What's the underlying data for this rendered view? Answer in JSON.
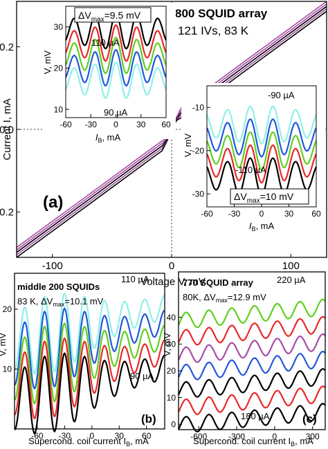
{
  "colors": {
    "black": "#000000",
    "red": "#e8282b",
    "green": "#5fcf1e",
    "blue": "#2357d9",
    "cyan": "#8ff0e8",
    "purple": "#a64ca6"
  },
  "chart_data": [
    {
      "id": "a",
      "type": "line",
      "panel_label": "(a)",
      "title": "800 SQUID array",
      "subtitle": "121 IVs, 83 K",
      "xlabel": "Voltage V, mV",
      "ylabel": "Current I, mA",
      "xlim": [
        -130,
        130
      ],
      "ylim": [
        -0.31,
        0.31
      ],
      "xticks": [
        -100,
        0,
        100
      ],
      "yticks": [
        -0.2,
        0.0,
        0.2
      ],
      "xtick_labels": [
        "-100",
        "0",
        "100"
      ],
      "ytick_labels": [
        "-0.2",
        "0.0",
        "0.2"
      ],
      "series": [
        {
          "x": [
            -130,
            -60,
            -20,
            -8,
            -4,
            0,
            4,
            8,
            20,
            60,
            130
          ],
          "y": [
            -0.298,
            -0.15,
            -0.065,
            -0.04,
            -0.025,
            0.0,
            0.025,
            0.04,
            0.065,
            0.15,
            0.298
          ]
        }
      ]
    },
    {
      "id": "a-inset-left",
      "type": "line",
      "annotation": "ΔVmax=9.5 mV",
      "annotation_main": "ΔV",
      "annotation_sub": "max",
      "annotation_rest": "=9.5 mV",
      "label_top": "110 µA",
      "label_bottom": "90 µA",
      "xlabel_main": "I",
      "xlabel_sub": "B",
      "xlabel_rest": ", mA",
      "ylabel": "V, mV",
      "xlim": [
        -60,
        60
      ],
      "ylim": [
        8,
        35
      ],
      "xticks": [
        -60,
        -30,
        0,
        30,
        60
      ],
      "yticks": [
        10,
        20,
        30
      ],
      "xtick_labels": [
        "-60",
        "-30",
        "0",
        "30",
        "60"
      ],
      "ytick_labels": [
        "10",
        "20",
        "30"
      ],
      "period": 25,
      "phase": 0,
      "amplitude": 4.4,
      "series": [
        {
          "color": "black",
          "offset": 29.0
        },
        {
          "color": "red",
          "offset": 26.0
        },
        {
          "color": "green",
          "offset": 23.0
        },
        {
          "color": "blue",
          "offset": 20.0
        },
        {
          "color": "cyan",
          "offset": 17.0
        }
      ]
    },
    {
      "id": "a-inset-right",
      "type": "line",
      "annotation": "ΔVmax=10 mV",
      "annotation_main": "ΔV",
      "annotation_sub": "max",
      "annotation_rest": "=10 mV",
      "label_top": "-90 µA",
      "label_bottom": "-110 µA",
      "xlabel_main": "I",
      "xlabel_sub": "B",
      "xlabel_rest": ", mA",
      "ylabel": "V, mV",
      "xlim": [
        -60,
        60
      ],
      "ylim": [
        -33,
        -5
      ],
      "xticks": [
        -60,
        -30,
        0,
        30,
        60
      ],
      "yticks": [
        -30,
        -20,
        -10
      ],
      "xtick_labels": [
        "-60",
        "-30",
        "0",
        "30",
        "60"
      ],
      "ytick_labels": [
        "-30",
        "-20",
        "-10"
      ],
      "period": 25,
      "phase": 0,
      "amplitude": -4.4,
      "series": [
        {
          "color": "cyan",
          "offset": -14.0
        },
        {
          "color": "blue",
          "offset": -17.0
        },
        {
          "color": "green",
          "offset": -20.0
        },
        {
          "color": "red",
          "offset": -23.0
        },
        {
          "color": "black",
          "offset": -26.0
        }
      ]
    },
    {
      "id": "b",
      "type": "line",
      "panel_label": "(b)",
      "title": "middle 200 SQUIDs",
      "annotation": "83 K, ΔVmax=10.1 mV",
      "annotation_prefix": "83 K, ΔV",
      "annotation_sub": "max",
      "annotation_rest": "=10.1 mV",
      "label_top": "110 µA",
      "label_bottom": "90 µA",
      "xlabel_main": "Supercond. coil current I",
      "xlabel_sub": "B",
      "xlabel_rest": ", mA",
      "ylabel": "V, mV",
      "xlim": [
        -85,
        80
      ],
      "ylim": [
        0,
        26
      ],
      "xticks": [
        -60,
        -30,
        0,
        30,
        60
      ],
      "yticks": [
        10,
        20
      ],
      "xtick_labels": [
        "-60",
        "-30",
        "0",
        "30",
        "60"
      ],
      "ytick_labels": [
        "10",
        "20"
      ],
      "period": 22,
      "phase": -52,
      "base_amplitude": 2.0,
      "amplitude_slope": 4.5,
      "series": [
        {
          "color": "cyan",
          "offset": 17.5,
          "tilt": 0.035
        },
        {
          "color": "blue",
          "offset": 15.0,
          "tilt": 0.035
        },
        {
          "color": "green",
          "offset": 12.5,
          "tilt": 0.035
        },
        {
          "color": "red",
          "offset": 10.0,
          "tilt": 0.035
        },
        {
          "color": "black",
          "offset": 7.5,
          "tilt": 0.035
        }
      ]
    },
    {
      "id": "c",
      "type": "line",
      "panel_label": "(c)",
      "title": "770 SQUID array",
      "annotation": "80K, ΔVmax=12.9 mV",
      "annotation_prefix": "80K, ΔV",
      "annotation_sub": "max",
      "annotation_rest": "=12.9 mV",
      "label_top": "220 µA",
      "label_bottom": "180 µA",
      "xlabel_main": "Supercond. coil current I",
      "xlabel_sub": "B",
      "xlabel_rest": ", mA",
      "ylabel": "V, mV",
      "xlim": [
        -760,
        400
      ],
      "ylim": [
        -2,
        57
      ],
      "xticks": [
        -600,
        -300,
        0,
        300
      ],
      "yticks": [
        0,
        10,
        20,
        30,
        40
      ],
      "xtick_labels": [
        "-600",
        "-300",
        "0",
        "300"
      ],
      "ytick_labels": [
        "0",
        "10",
        "20",
        "30",
        "40"
      ],
      "period": 180,
      "phase": -160,
      "amplitude": 3.0,
      "series": [
        {
          "color": "green",
          "offset": 42.0,
          "tilt": 0.0045
        },
        {
          "color": "red",
          "offset": 35.5,
          "tilt": 0.0045
        },
        {
          "color": "purple",
          "offset": 29.0,
          "tilt": 0.0045
        },
        {
          "color": "blue",
          "offset": 22.5,
          "tilt": 0.0045
        },
        {
          "color": "black",
          "offset": 16.0,
          "tilt": 0.0045
        },
        {
          "color": "red",
          "offset": 9.5,
          "tilt": 0.0045
        },
        {
          "color": "black",
          "offset": 3.0,
          "tilt": 0.0045
        }
      ]
    }
  ]
}
